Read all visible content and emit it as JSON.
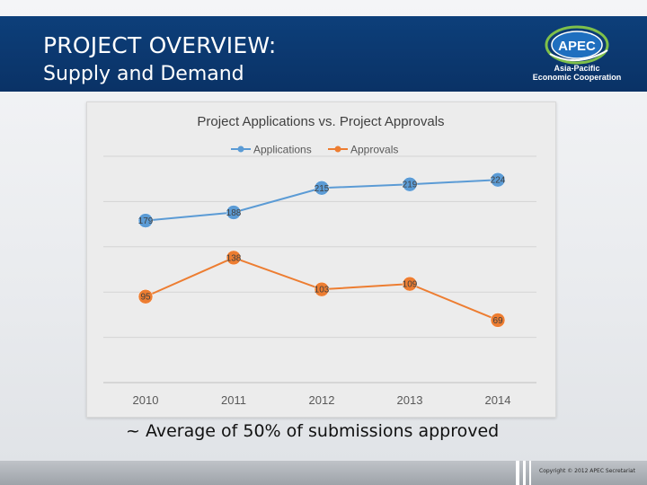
{
  "slide": {
    "title_line1": "PROJECT OVERVIEW:",
    "title_line2": "Supply and Demand",
    "caption": "~ Average of 50% of submissions approved",
    "copyright": "Copyright © 2012 APEC Secretariat"
  },
  "logo": {
    "mark_text": "APEC",
    "line1": "Asia-Pacific",
    "line2": "Economic Cooperation"
  },
  "colors": {
    "header": "#0b3870",
    "applications": "#5b9bd5",
    "approvals": "#ed7d31"
  },
  "chart_data": {
    "type": "line",
    "title": "Project Applications vs. Project Approvals",
    "categories": [
      "2010",
      "2011",
      "2012",
      "2013",
      "2014"
    ],
    "series": [
      {
        "name": "Applications",
        "values": [
          179,
          188,
          215,
          219,
          224
        ]
      },
      {
        "name": "Approvals",
        "values": [
          95,
          138,
          103,
          109,
          69
        ]
      }
    ],
    "ylim": [
      0,
      250
    ],
    "legend_position": "top",
    "gridlines": true
  }
}
